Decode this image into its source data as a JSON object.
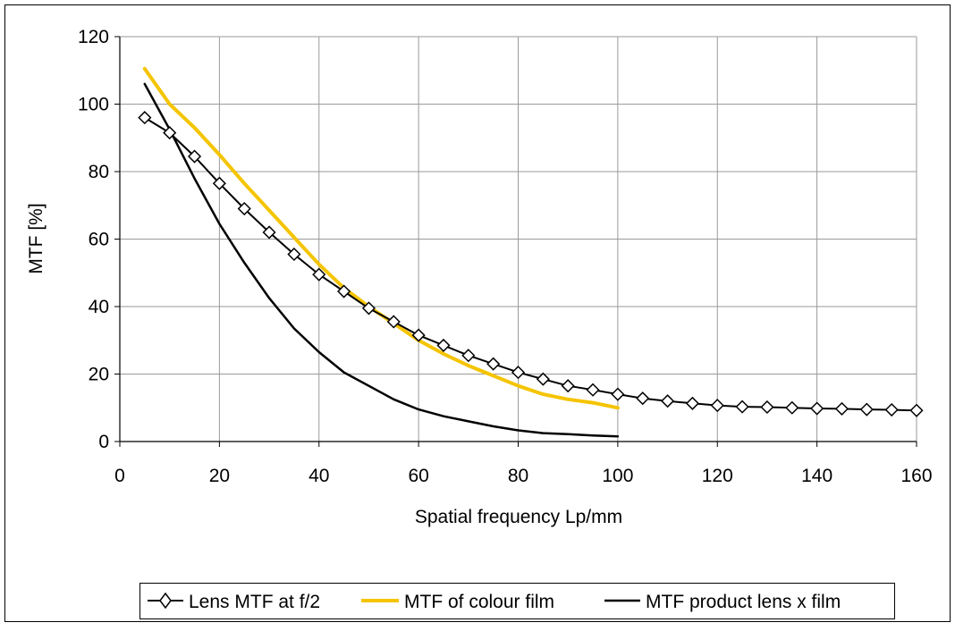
{
  "chart_data": {
    "type": "line",
    "title": "",
    "xlabel": "Spatial frequency  Lp/mm",
    "ylabel": "MTF  [%]",
    "xlim": [
      0,
      160
    ],
    "ylim": [
      0,
      120
    ],
    "xticks": [
      0,
      20,
      40,
      60,
      80,
      100,
      120,
      140,
      160
    ],
    "yticks": [
      0,
      20,
      40,
      60,
      80,
      100,
      120
    ],
    "grid": true,
    "legend_position": "bottom",
    "series": [
      {
        "name": "Lens MTF at f/2",
        "color": "#000000",
        "marker": "diamond",
        "x": [
          5,
          10,
          15,
          20,
          25,
          30,
          35,
          40,
          45,
          50,
          55,
          60,
          65,
          70,
          75,
          80,
          85,
          90,
          95,
          100,
          105,
          110,
          115,
          120,
          125,
          130,
          135,
          140,
          145,
          150,
          155,
          160
        ],
        "y": [
          96,
          91.5,
          84.5,
          76.5,
          69,
          62,
          55.5,
          49.5,
          44.5,
          39.5,
          35.5,
          31.5,
          28.5,
          25.5,
          23,
          20.5,
          18.5,
          16.5,
          15.3,
          14,
          12.8,
          12,
          11.3,
          10.7,
          10.3,
          10.2,
          10,
          9.8,
          9.7,
          9.5,
          9.4,
          9.2
        ]
      },
      {
        "name": "MTF of colour film",
        "color": "#F5C400",
        "marker": "none",
        "x": [
          5,
          10,
          15,
          20,
          25,
          30,
          35,
          40,
          45,
          50,
          55,
          60,
          65,
          70,
          75,
          80,
          85,
          90,
          95,
          100
        ],
        "y": [
          110.5,
          100,
          93,
          85,
          76.5,
          68.5,
          60.5,
          52.5,
          45.5,
          40,
          35,
          30,
          26,
          22.5,
          19.5,
          16.5,
          14,
          12.5,
          11.5,
          10
        ]
      },
      {
        "name": "MTF product lens x film",
        "color": "#000000",
        "marker": "none",
        "x": [
          5,
          10,
          15,
          20,
          25,
          30,
          35,
          40,
          45,
          50,
          55,
          60,
          65,
          70,
          75,
          80,
          85,
          90,
          95,
          100
        ],
        "y": [
          106,
          92.5,
          78,
          64.5,
          53,
          42.5,
          33.5,
          26.5,
          20.5,
          16.5,
          12.5,
          9.5,
          7.5,
          6,
          4.5,
          3.3,
          2.5,
          2.2,
          1.8,
          1.5
        ]
      }
    ]
  }
}
